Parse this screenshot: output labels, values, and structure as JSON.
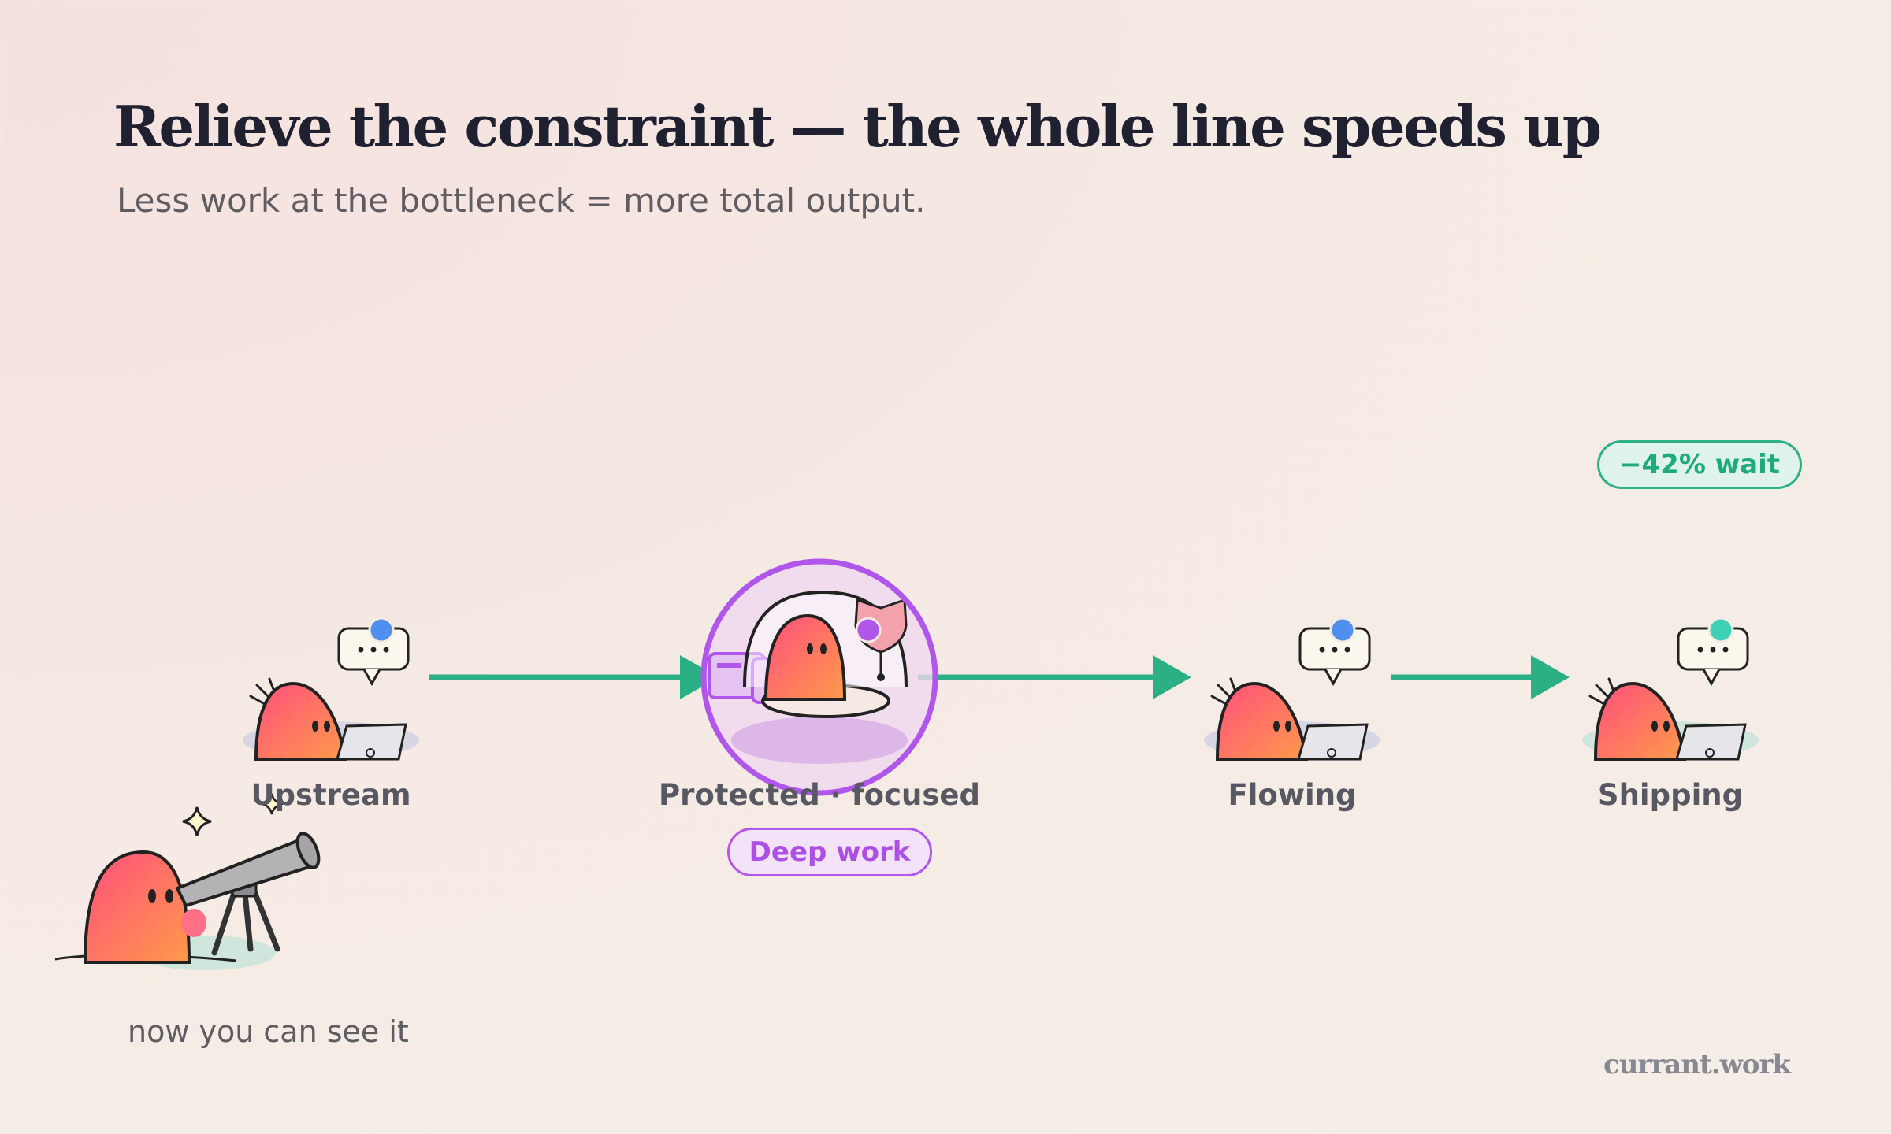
{
  "header": {
    "title": "Relieve the constraint — the whole line speeds up",
    "subtitle": "Less work at the bottleneck = more total output."
  },
  "stages": [
    {
      "label": "Upstream",
      "status_color": "#4f8ff0"
    },
    {
      "label": "Protected · focused",
      "badge": "Deep work",
      "status_color": "#b056ea"
    },
    {
      "label": "Flowing",
      "status_color": "#4f8ff0"
    },
    {
      "label": "Shipping",
      "status_color": "#3fd1b8"
    }
  ],
  "metric": {
    "label": "−42% wait"
  },
  "caption": "now you can see it",
  "brand": "currant.work",
  "colors": {
    "title": "#1f2130",
    "flow_arrow": "#2bb085",
    "focus_ring": "#b056ea",
    "character": "#ff5f7a"
  }
}
